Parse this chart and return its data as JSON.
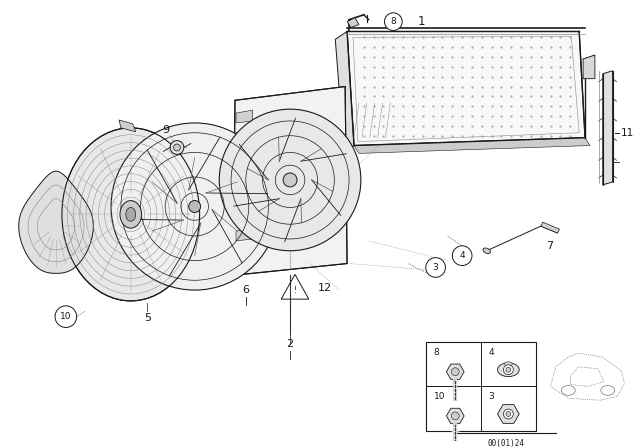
{
  "background_color": "#ffffff",
  "line_color": "#1a1a1a",
  "fig_width": 6.4,
  "fig_height": 4.48,
  "dpi": 100,
  "footer_text": "00(01)24"
}
